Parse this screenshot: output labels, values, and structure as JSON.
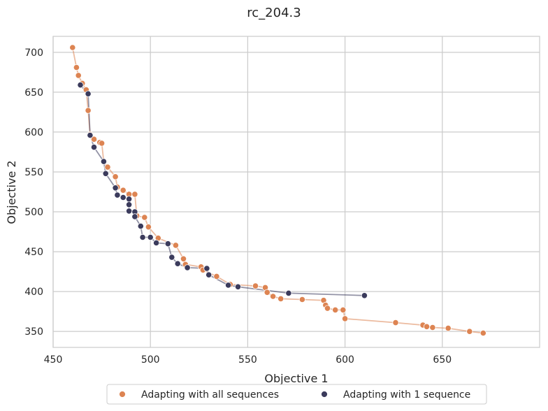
{
  "chart_data": {
    "type": "scatter",
    "title": "rc_204.3",
    "xlabel": "Objective 1",
    "ylabel": "Objective 2",
    "xlim": [
      450,
      700
    ],
    "ylim": [
      330,
      720
    ],
    "xticks": [
      450,
      500,
      550,
      600,
      650
    ],
    "yticks": [
      350,
      400,
      450,
      500,
      550,
      600,
      650,
      700
    ],
    "grid": true,
    "legend": "bottom-center",
    "series": [
      {
        "name": "Adapting with all sequences",
        "color": "#dd8452",
        "points": [
          [
            460,
            706
          ],
          [
            462,
            681
          ],
          [
            463,
            671
          ],
          [
            465,
            661
          ],
          [
            467,
            653
          ],
          [
            468,
            627
          ],
          [
            469,
            597
          ],
          [
            471,
            591
          ],
          [
            474,
            587
          ],
          [
            475,
            586
          ],
          [
            476,
            563
          ],
          [
            478,
            556
          ],
          [
            482,
            544
          ],
          [
            483,
            531
          ],
          [
            486,
            527
          ],
          [
            489,
            522
          ],
          [
            492,
            522
          ],
          [
            493,
            495
          ],
          [
            497,
            493
          ],
          [
            499,
            481
          ],
          [
            504,
            467
          ],
          [
            513,
            458
          ],
          [
            517,
            441
          ],
          [
            518,
            434
          ],
          [
            526,
            431
          ],
          [
            527,
            427
          ],
          [
            534,
            419
          ],
          [
            541,
            409
          ],
          [
            554,
            407
          ],
          [
            559,
            405
          ],
          [
            560,
            399
          ],
          [
            563,
            394
          ],
          [
            567,
            391
          ],
          [
            578,
            390
          ],
          [
            589,
            389
          ],
          [
            590,
            383
          ],
          [
            591,
            379
          ],
          [
            595,
            377
          ],
          [
            599,
            377
          ],
          [
            600,
            366
          ],
          [
            626,
            361
          ],
          [
            640,
            358
          ],
          [
            642,
            356
          ],
          [
            645,
            355
          ],
          [
            653,
            354
          ],
          [
            664,
            350
          ],
          [
            671,
            348
          ]
        ]
      },
      {
        "name": "Adapting with 1 sequence",
        "color": "#3b3b5c",
        "points": [
          [
            464,
            659
          ],
          [
            468,
            648
          ],
          [
            469,
            596
          ],
          [
            471,
            581
          ],
          [
            476,
            563
          ],
          [
            477,
            548
          ],
          [
            482,
            530
          ],
          [
            483,
            521
          ],
          [
            486,
            518
          ],
          [
            489,
            516
          ],
          [
            489,
            509
          ],
          [
            489,
            501
          ],
          [
            492,
            500
          ],
          [
            492,
            494
          ],
          [
            495,
            482
          ],
          [
            496,
            468
          ],
          [
            500,
            468
          ],
          [
            503,
            461
          ],
          [
            509,
            460
          ],
          [
            511,
            443
          ],
          [
            514,
            435
          ],
          [
            519,
            430
          ],
          [
            529,
            429
          ],
          [
            530,
            421
          ],
          [
            540,
            408
          ],
          [
            545,
            406
          ],
          [
            571,
            398
          ],
          [
            610,
            395
          ]
        ]
      }
    ]
  }
}
